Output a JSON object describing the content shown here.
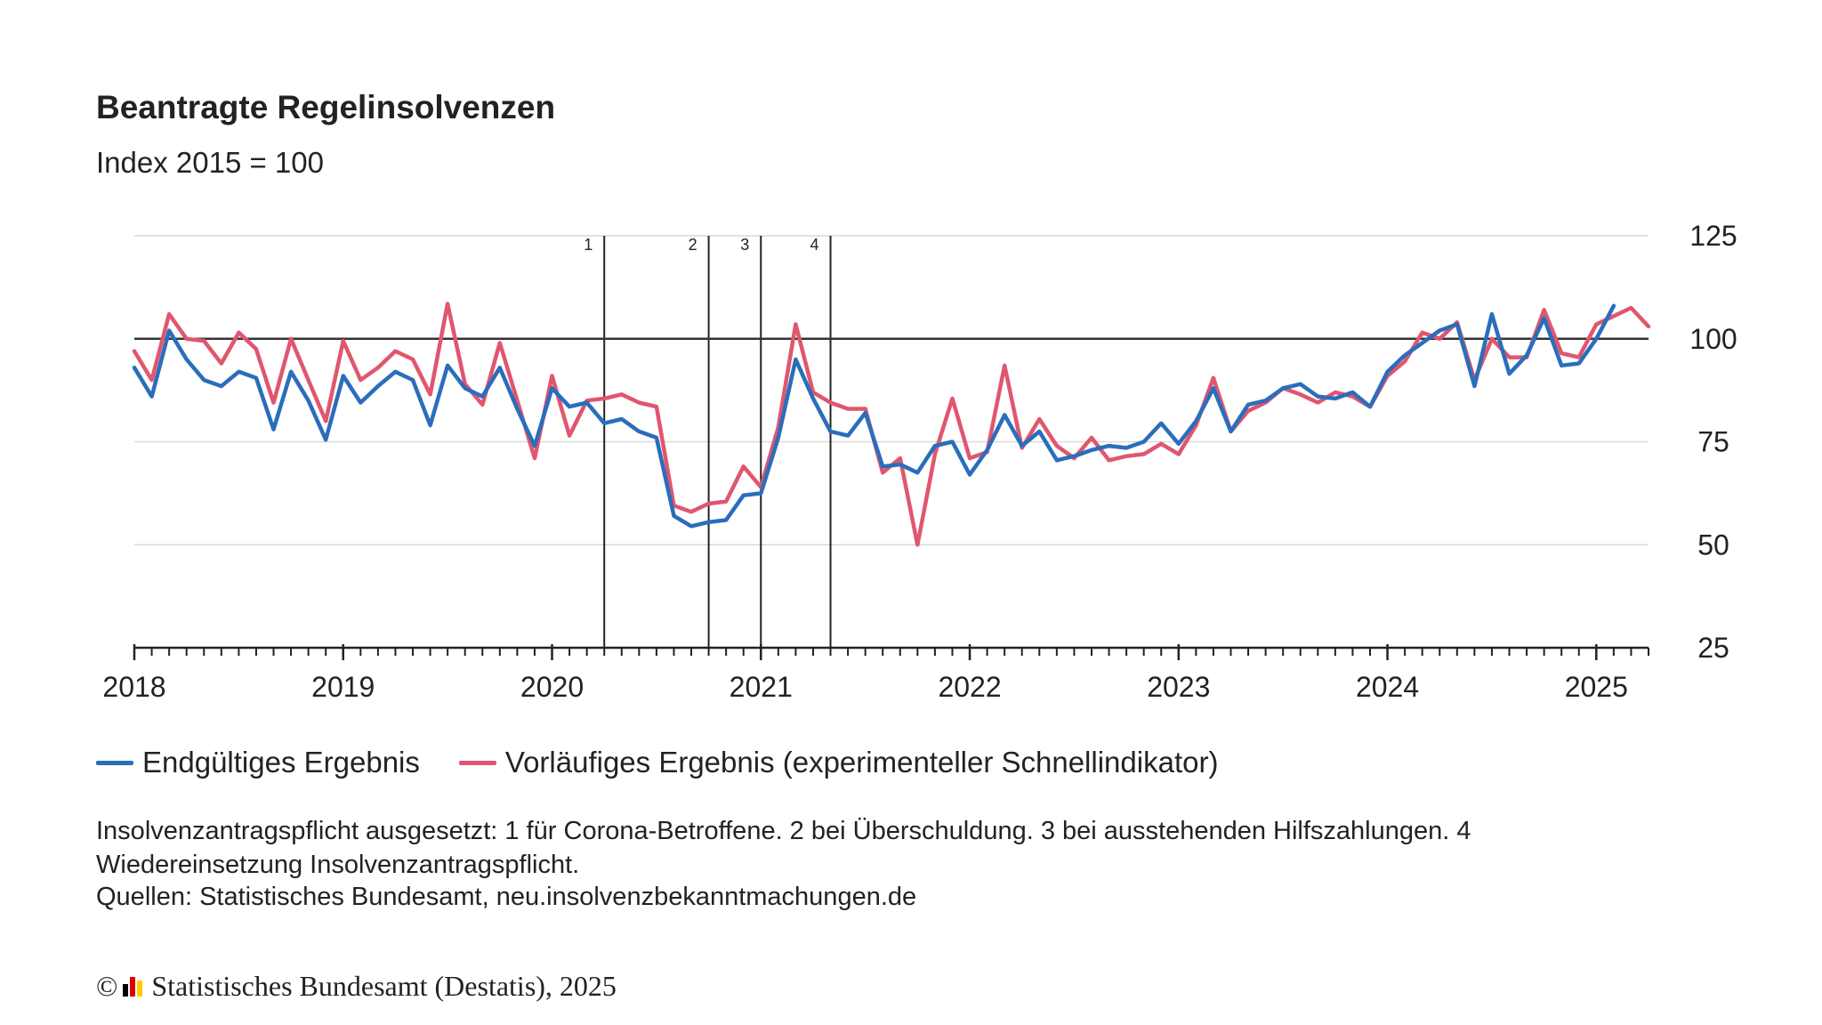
{
  "title": "Beantragte Regelinsolvenzen",
  "subtitle": "Index 2015 = 100",
  "note": "Insolvenzantragspflicht ausgesetzt: 1 für Corona-Betroffene. 2 bei Überschuldung. 3 bei ausstehenden Hilfszahlungen. 4 Wiedereinsetzung Insolvenzantragspflicht.",
  "source": "Quellen: Statistisches Bundesamt, neu.insolvenzbekanntmachungen.de",
  "footer": {
    "copyright": "©",
    "text": "Statistisches Bundesamt (Destatis), 2025",
    "logo_colors": [
      "#000000",
      "#dd0000",
      "#ffcc00"
    ]
  },
  "chart_data": {
    "type": "line",
    "title": "Beantragte Regelinsolvenzen",
    "subtitle": "Index 2015 = 100",
    "x_start": "2018-01",
    "x_end": "2025-04",
    "x_ticks": [
      "2018",
      "2019",
      "2020",
      "2021",
      "2022",
      "2023",
      "2024",
      "2025"
    ],
    "y_ticks": [
      25,
      50,
      75,
      100,
      125
    ],
    "ylim": [
      25,
      125
    ],
    "y_axis_side": "right",
    "reference_line": 100,
    "grid": true,
    "legend_position": "bottom-left",
    "markers": [
      {
        "label": "1",
        "date": "2020-04"
      },
      {
        "label": "2",
        "date": "2020-10"
      },
      {
        "label": "3",
        "date": "2021-01"
      },
      {
        "label": "4",
        "date": "2021-05"
      }
    ],
    "series": [
      {
        "name": "Endgültiges Ergebnis",
        "color": "#2a6ebb",
        "start": "2018-01",
        "values": [
          93,
          86,
          102,
          95,
          90,
          88.5,
          92,
          90.5,
          78,
          92,
          85,
          75.5,
          91,
          84.5,
          88.5,
          92,
          90,
          79,
          93.5,
          88,
          86,
          93,
          83,
          74,
          88,
          83.5,
          84.5,
          79.5,
          80.5,
          77.5,
          76,
          57,
          54.5,
          55.5,
          56,
          62,
          62.5,
          76,
          95,
          85.5,
          77.5,
          76.5,
          82,
          69,
          69.5,
          67.5,
          74,
          75,
          67,
          73,
          81.5,
          74,
          77.5,
          70.5,
          71.5,
          73,
          74,
          73.5,
          75,
          79.5,
          74.5,
          80,
          88,
          77.5,
          84,
          85,
          88,
          89,
          86,
          85.5,
          87,
          83.5,
          92,
          96,
          99,
          102,
          103.5,
          88.5,
          106,
          91.5,
          96,
          105,
          93.5,
          94,
          100,
          108
        ]
      },
      {
        "name": "Vorläufiges Ergebnis (experimenteller Schnellindikator)",
        "color": "#e0566e",
        "start": "2018-01",
        "values": [
          97,
          90,
          106,
          100,
          99.5,
          94,
          101.5,
          97.5,
          84.5,
          100,
          90,
          80,
          99.5,
          90,
          93,
          97,
          95,
          86.5,
          108.5,
          89,
          84,
          99,
          85,
          71,
          91,
          76.5,
          85,
          85.5,
          86.5,
          84.5,
          83.5,
          59.5,
          58,
          60,
          60.5,
          69,
          64,
          78.5,
          103.5,
          87,
          84.5,
          83,
          83,
          67.5,
          71,
          50,
          72,
          85.5,
          71,
          72.5,
          93.5,
          73.5,
          80.5,
          74,
          71,
          76,
          70.5,
          71.5,
          72,
          74.5,
          72,
          79,
          90.5,
          77.5,
          82.5,
          84.5,
          88,
          86.5,
          84.5,
          87,
          86,
          83.5,
          91,
          94.5,
          101.5,
          100,
          104,
          90,
          100,
          95.5,
          95.5,
          107,
          96.5,
          95.5,
          103.5,
          105.5,
          107.5,
          103
        ]
      }
    ]
  }
}
